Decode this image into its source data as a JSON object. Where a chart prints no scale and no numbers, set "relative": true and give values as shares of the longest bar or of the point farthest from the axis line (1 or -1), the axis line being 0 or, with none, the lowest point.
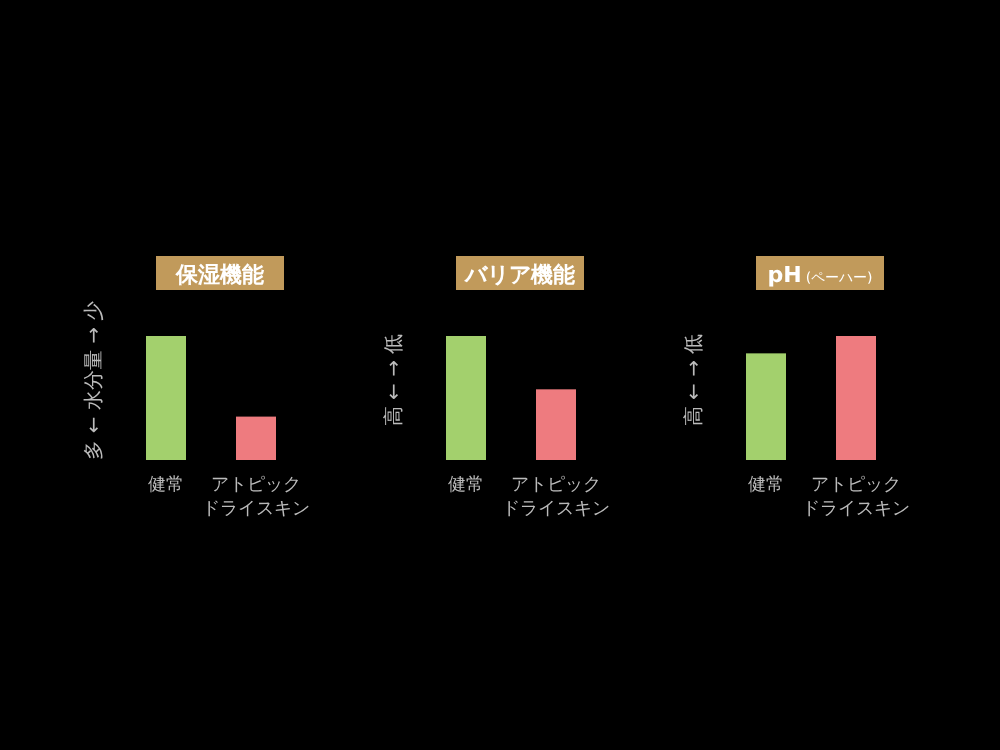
{
  "chart_data": [
    {
      "type": "bar",
      "title": "保湿機能",
      "ylabel": "多 ← 水分量 → 少",
      "categories": [
        "健常",
        "アトピックドライスキン"
      ],
      "values": [
        1,
        0.35
      ],
      "colors": [
        "#a3d06d",
        "#ee7b7f"
      ],
      "relative": true
    },
    {
      "type": "bar",
      "title": "バリア機能",
      "ylabel": "高 ← → 低",
      "categories": [
        "健常",
        "アトピックドライスキン"
      ],
      "values": [
        1,
        0.57
      ],
      "colors": [
        "#a3d06d",
        "#ee7b7f"
      ],
      "relative": true
    },
    {
      "type": "bar",
      "title": "pH",
      "subtitle": "(ペーハー)",
      "ylabel": "高 ← → 低",
      "categories": [
        "健常",
        "アトピックドライスキン"
      ],
      "values": [
        0.86,
        1
      ],
      "colors": [
        "#a3d06d",
        "#ee7b7f"
      ],
      "relative": true
    }
  ]
}
